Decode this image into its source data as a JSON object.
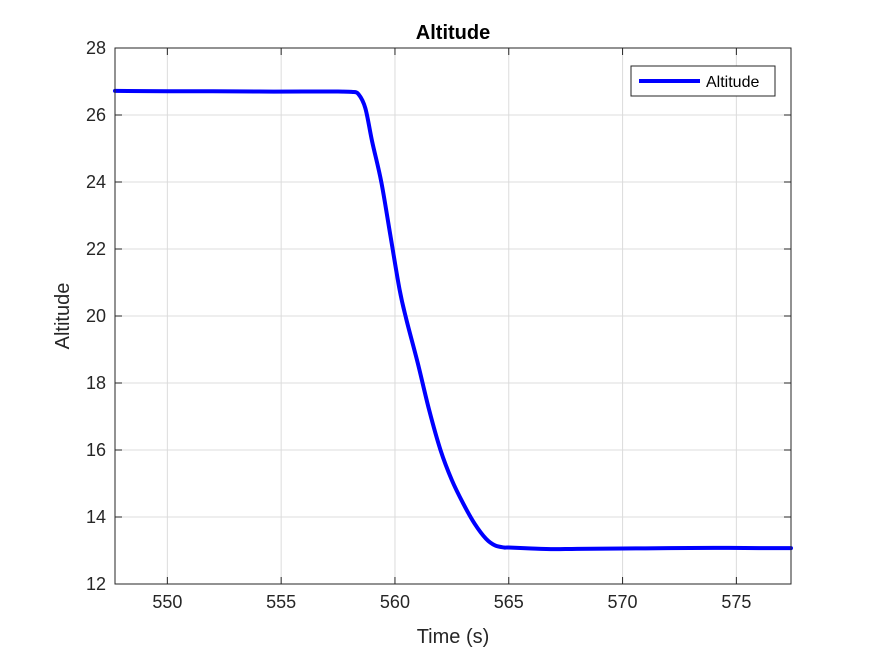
{
  "chart_data": {
    "type": "line",
    "title": "Altitude",
    "xlabel": "Time (s)",
    "ylabel": "Altitude",
    "xlim": [
      547.7,
      577.4
    ],
    "ylim": [
      12,
      28
    ],
    "xticks": [
      550,
      555,
      560,
      565,
      570,
      575
    ],
    "yticks": [
      12,
      14,
      16,
      18,
      20,
      22,
      24,
      26,
      28
    ],
    "grid": true,
    "legend": {
      "location": "top-right",
      "entries": [
        "Altitude"
      ]
    },
    "series": [
      {
        "name": "Altitude",
        "color": "#0000ff",
        "x": [
          547.7,
          550,
          552,
          554,
          556,
          557.5,
          558.1,
          558.4,
          558.7,
          559.0,
          559.4,
          559.8,
          560.2,
          560.5,
          561.0,
          561.5,
          562.0,
          562.5,
          563.0,
          563.5,
          564.0,
          564.4,
          564.8,
          565.0,
          566.0,
          567.0,
          568.0,
          570.0,
          572.0,
          574.0,
          576.0,
          577.4
        ],
        "y": [
          26.72,
          26.71,
          26.71,
          26.7,
          26.7,
          26.7,
          26.69,
          26.62,
          26.2,
          25.2,
          24.0,
          22.4,
          20.8,
          19.9,
          18.6,
          17.2,
          16.0,
          15.1,
          14.4,
          13.8,
          13.35,
          13.15,
          13.09,
          13.09,
          13.06,
          13.04,
          13.05,
          13.06,
          13.07,
          13.08,
          13.07,
          13.07
        ]
      }
    ]
  }
}
